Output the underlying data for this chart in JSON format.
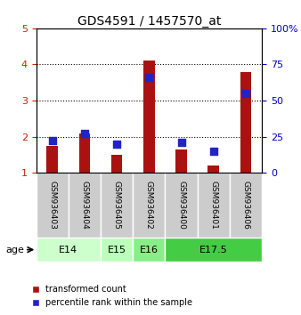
{
  "title": "GDS4591 / 1457570_at",
  "samples": [
    "GSM936403",
    "GSM936404",
    "GSM936405",
    "GSM936402",
    "GSM936400",
    "GSM936401",
    "GSM936406"
  ],
  "red_bars": [
    1.75,
    2.1,
    1.5,
    4.1,
    1.65,
    1.2,
    3.8
  ],
  "blue_squares": [
    1.9,
    2.1,
    1.8,
    3.65,
    1.85,
    1.6,
    3.2
  ],
  "age_groups": [
    {
      "label": "E14",
      "samples": [
        0,
        1
      ],
      "color": "#ccffcc"
    },
    {
      "label": "E15",
      "samples": [
        2
      ],
      "color": "#bbffbb"
    },
    {
      "label": "E16",
      "samples": [
        3
      ],
      "color": "#88ee88"
    },
    {
      "label": "E17.5",
      "samples": [
        4,
        5,
        6
      ],
      "color": "#44cc44"
    }
  ],
  "ylim_left": [
    1,
    5
  ],
  "ylim_right": [
    0,
    100
  ],
  "yticks_left": [
    1,
    2,
    3,
    4,
    5
  ],
  "yticks_right": [
    0,
    25,
    50,
    75,
    100
  ],
  "bar_color": "#aa1111",
  "square_color": "#2222cc",
  "sample_bg": "#cccccc",
  "title_color": "#000000",
  "left_tick_color": "#cc2200",
  "right_tick_color": "#0000cc",
  "bar_width": 0.35,
  "square_size": 28
}
